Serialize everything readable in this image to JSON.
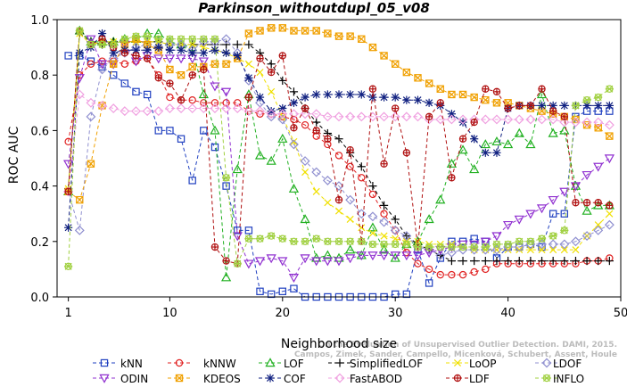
{
  "chart_data": {
    "type": "line",
    "title": "Parkinson_withoutdupl_05_v08",
    "xlabel": "Neighborhood size",
    "ylabel": "ROC AUC",
    "xlim": [
      0,
      50
    ],
    "ylim": [
      0,
      1
    ],
    "xticks": [
      1,
      10,
      20,
      30,
      40,
      50
    ],
    "yticks": [
      0.0,
      0.2,
      0.4,
      0.6,
      0.8,
      1.0
    ],
    "grid": false,
    "legend_position": "bottom",
    "watermark": "Campos, Zimek, Sander, Campello, Micenková, Schubert, Assent, Houle\nOn the Evaluation of Unsupervised Outlier Detection. DAMI, 2015.",
    "series": [
      {
        "name": "kNN",
        "color": "#2040c0",
        "marker": "square",
        "x": [
          1,
          2,
          3,
          4,
          5,
          6,
          7,
          8,
          9,
          10,
          11,
          12,
          13,
          14,
          15,
          16,
          17,
          18,
          19,
          20,
          21,
          22,
          23,
          24,
          25,
          26,
          27,
          28,
          29,
          30,
          31,
          32,
          33,
          34,
          35,
          36,
          37,
          38,
          39,
          40,
          41,
          42,
          43,
          44,
          45,
          46,
          47,
          48,
          49
        ],
        "y": [
          0.87,
          0.87,
          0.85,
          0.83,
          0.8,
          0.77,
          0.74,
          0.73,
          0.6,
          0.6,
          0.57,
          0.42,
          0.6,
          0.54,
          0.4,
          0.24,
          0.24,
          0.02,
          0.01,
          0.02,
          0.03,
          0.0,
          0.0,
          0.0,
          0.0,
          0.0,
          0.0,
          0.0,
          0.0,
          0.01,
          0.01,
          0.17,
          0.05,
          0.14,
          0.2,
          0.2,
          0.21,
          0.2,
          0.14,
          0.18,
          0.18,
          0.19,
          0.18,
          0.3,
          0.3,
          0.65,
          0.67,
          0.67,
          0.67
        ]
      },
      {
        "name": "kNNW",
        "color": "#e02020",
        "marker": "circle",
        "x": [
          1,
          2,
          3,
          4,
          5,
          6,
          7,
          8,
          9,
          10,
          11,
          12,
          13,
          14,
          15,
          16,
          17,
          18,
          19,
          20,
          21,
          22,
          23,
          24,
          25,
          26,
          27,
          28,
          29,
          30,
          31,
          32,
          33,
          34,
          35,
          36,
          37,
          38,
          39,
          40,
          41,
          42,
          43,
          44,
          45,
          46,
          47,
          48,
          49
        ],
        "y": [
          0.56,
          0.8,
          0.84,
          0.85,
          0.85,
          0.84,
          0.85,
          0.86,
          0.8,
          0.72,
          0.71,
          0.71,
          0.7,
          0.7,
          0.7,
          0.7,
          0.67,
          0.66,
          0.66,
          0.65,
          0.64,
          0.62,
          0.58,
          0.55,
          0.51,
          0.47,
          0.43,
          0.37,
          0.3,
          0.24,
          0.16,
          0.12,
          0.1,
          0.08,
          0.08,
          0.08,
          0.09,
          0.1,
          0.12,
          0.12,
          0.12,
          0.12,
          0.12,
          0.12,
          0.12,
          0.12,
          0.13,
          0.13,
          0.14
        ]
      },
      {
        "name": "LOF",
        "color": "#20b020",
        "marker": "triangle",
        "x": [
          1,
          2,
          3,
          4,
          5,
          6,
          7,
          8,
          9,
          10,
          11,
          12,
          13,
          14,
          15,
          16,
          17,
          18,
          19,
          20,
          21,
          22,
          23,
          24,
          25,
          26,
          27,
          28,
          29,
          30,
          31,
          32,
          33,
          34,
          35,
          36,
          37,
          38,
          39,
          40,
          41,
          42,
          43,
          44,
          45,
          46,
          47,
          48,
          49
        ],
        "y": [
          0.38,
          0.96,
          0.92,
          0.92,
          0.92,
          0.93,
          0.93,
          0.95,
          0.95,
          0.92,
          0.91,
          0.9,
          0.73,
          0.6,
          0.07,
          0.46,
          0.73,
          0.51,
          0.49,
          0.57,
          0.39,
          0.28,
          0.14,
          0.15,
          0.14,
          0.17,
          0.15,
          0.25,
          0.17,
          0.14,
          0.19,
          0.2,
          0.28,
          0.35,
          0.48,
          0.53,
          0.46,
          0.55,
          0.56,
          0.55,
          0.59,
          0.55,
          0.73,
          0.59,
          0.6,
          0.4,
          0.31,
          0.33,
          0.33
        ]
      },
      {
        "name": "SimplifiedLOF",
        "color": "#000000",
        "marker": "plus",
        "x": [
          1,
          2,
          3,
          4,
          5,
          6,
          7,
          8,
          9,
          10,
          11,
          12,
          13,
          14,
          15,
          16,
          17,
          18,
          19,
          20,
          21,
          22,
          23,
          24,
          25,
          26,
          27,
          28,
          29,
          30,
          31,
          32,
          33,
          34,
          35,
          36,
          37,
          38,
          39,
          40,
          41,
          42,
          43,
          44,
          45,
          46,
          47,
          48,
          49
        ],
        "y": [
          0.39,
          0.95,
          0.92,
          0.91,
          0.92,
          0.92,
          0.92,
          0.92,
          0.92,
          0.91,
          0.91,
          0.91,
          0.91,
          0.91,
          0.91,
          0.91,
          0.91,
          0.88,
          0.84,
          0.78,
          0.74,
          0.68,
          0.63,
          0.59,
          0.57,
          0.52,
          0.47,
          0.4,
          0.33,
          0.28,
          0.22,
          0.19,
          0.17,
          0.15,
          0.13,
          0.13,
          0.13,
          0.13,
          0.13,
          0.13,
          0.13,
          0.13,
          0.13,
          0.13,
          0.13,
          0.13,
          0.13,
          0.13,
          0.13
        ]
      },
      {
        "name": "LoOP",
        "color": "#f0e000",
        "marker": "x",
        "x": [
          1,
          2,
          3,
          4,
          5,
          6,
          7,
          8,
          9,
          10,
          11,
          12,
          13,
          14,
          15,
          16,
          17,
          18,
          19,
          20,
          21,
          22,
          23,
          24,
          25,
          26,
          27,
          28,
          29,
          30,
          31,
          32,
          33,
          34,
          35,
          36,
          37,
          38,
          39,
          40,
          41,
          42,
          43,
          44,
          45,
          46,
          47,
          48,
          49
        ],
        "y": [
          0.39,
          0.95,
          0.91,
          0.92,
          0.92,
          0.92,
          0.92,
          0.92,
          0.92,
          0.91,
          0.91,
          0.91,
          0.9,
          0.89,
          0.88,
          0.86,
          0.84,
          0.81,
          0.74,
          0.65,
          0.56,
          0.45,
          0.38,
          0.34,
          0.31,
          0.28,
          0.25,
          0.23,
          0.22,
          0.21,
          0.2,
          0.2,
          0.19,
          0.19,
          0.19,
          0.18,
          0.17,
          0.17,
          0.17,
          0.17,
          0.17,
          0.17,
          0.17,
          0.17,
          0.17,
          0.17,
          0.22,
          0.26,
          0.3
        ]
      },
      {
        "name": "LDOF",
        "color": "#9090d0",
        "marker": "diamond",
        "x": [
          1,
          2,
          3,
          4,
          5,
          6,
          7,
          8,
          9,
          10,
          11,
          12,
          13,
          14,
          15,
          16,
          17,
          18,
          19,
          20,
          21,
          22,
          23,
          24,
          25,
          26,
          27,
          28,
          29,
          30,
          31,
          32,
          33,
          34,
          35,
          36,
          37,
          38,
          39,
          40,
          41,
          42,
          43,
          44,
          45,
          46,
          47,
          48,
          49
        ],
        "y": [
          0.38,
          0.24,
          0.65,
          0.82,
          0.86,
          0.88,
          0.9,
          0.91,
          0.9,
          0.91,
          0.91,
          0.89,
          0.92,
          0.92,
          0.93,
          0.88,
          0.78,
          0.7,
          0.65,
          0.64,
          0.55,
          0.49,
          0.45,
          0.42,
          0.4,
          0.35,
          0.3,
          0.29,
          0.27,
          0.24,
          0.22,
          0.18,
          0.17,
          0.15,
          0.16,
          0.17,
          0.17,
          0.17,
          0.17,
          0.18,
          0.18,
          0.19,
          0.19,
          0.19,
          0.19,
          0.2,
          0.22,
          0.24,
          0.26
        ]
      },
      {
        "name": "ODIN",
        "color": "#9030d0",
        "marker": "triangle-down",
        "x": [
          1,
          2,
          3,
          4,
          5,
          6,
          7,
          8,
          9,
          10,
          11,
          12,
          13,
          14,
          15,
          16,
          17,
          18,
          19,
          20,
          21,
          22,
          23,
          24,
          25,
          26,
          27,
          28,
          29,
          30,
          31,
          32,
          33,
          34,
          35,
          36,
          37,
          38,
          39,
          40,
          41,
          42,
          43,
          44,
          45,
          46,
          47,
          48,
          49
        ],
        "y": [
          0.48,
          0.79,
          0.93,
          0.84,
          0.84,
          0.91,
          0.85,
          0.87,
          0.86,
          0.86,
          0.86,
          0.86,
          0.85,
          0.76,
          0.74,
          0.22,
          0.12,
          0.13,
          0.14,
          0.13,
          0.07,
          0.14,
          0.13,
          0.13,
          0.13,
          0.14,
          0.15,
          0.15,
          0.15,
          0.15,
          0.15,
          0.15,
          0.16,
          0.17,
          0.18,
          0.19,
          0.19,
          0.2,
          0.22,
          0.26,
          0.28,
          0.3,
          0.32,
          0.35,
          0.38,
          0.4,
          0.44,
          0.47,
          0.5
        ]
      },
      {
        "name": "KDEOS",
        "color": "#f0a000",
        "marker": "square-x",
        "x": [
          1,
          2,
          3,
          4,
          5,
          6,
          7,
          8,
          9,
          10,
          11,
          12,
          13,
          14,
          15,
          16,
          17,
          18,
          19,
          20,
          21,
          22,
          23,
          24,
          25,
          26,
          27,
          28,
          29,
          30,
          31,
          32,
          33,
          34,
          35,
          36,
          37,
          38,
          39,
          40,
          41,
          42,
          43,
          44,
          45,
          46,
          47,
          48,
          49
        ],
        "y": [
          0.38,
          0.35,
          0.48,
          0.69,
          0.84,
          0.91,
          0.93,
          0.91,
          0.89,
          0.82,
          0.8,
          0.83,
          0.83,
          0.84,
          0.84,
          0.86,
          0.95,
          0.96,
          0.97,
          0.97,
          0.96,
          0.96,
          0.96,
          0.95,
          0.94,
          0.94,
          0.93,
          0.9,
          0.87,
          0.84,
          0.81,
          0.79,
          0.77,
          0.75,
          0.73,
          0.73,
          0.72,
          0.71,
          0.7,
          0.7,
          0.69,
          0.68,
          0.67,
          0.66,
          0.65,
          0.64,
          0.62,
          0.61,
          0.58
        ]
      },
      {
        "name": "COF",
        "color": "#102080",
        "marker": "star",
        "x": [
          1,
          2,
          3,
          4,
          5,
          6,
          7,
          8,
          9,
          10,
          11,
          12,
          13,
          14,
          15,
          16,
          17,
          18,
          19,
          20,
          21,
          22,
          23,
          24,
          25,
          26,
          27,
          28,
          29,
          30,
          31,
          32,
          33,
          34,
          35,
          36,
          37,
          38,
          39,
          40,
          41,
          42,
          43,
          44,
          45,
          46,
          47,
          48,
          49
        ],
        "y": [
          0.25,
          0.88,
          0.9,
          0.95,
          0.88,
          0.89,
          0.89,
          0.89,
          0.9,
          0.89,
          0.89,
          0.88,
          0.88,
          0.89,
          0.88,
          0.87,
          0.79,
          0.72,
          0.67,
          0.68,
          0.7,
          0.72,
          0.73,
          0.73,
          0.73,
          0.73,
          0.73,
          0.72,
          0.72,
          0.72,
          0.71,
          0.71,
          0.7,
          0.69,
          0.66,
          0.63,
          0.57,
          0.52,
          0.52,
          0.68,
          0.69,
          0.69,
          0.69,
          0.69,
          0.69,
          0.69,
          0.69,
          0.69,
          0.69
        ]
      },
      {
        "name": "FastABOD",
        "color": "#f0a0e0",
        "marker": "diamond",
        "x": [
          1,
          2,
          3,
          4,
          5,
          6,
          7,
          8,
          9,
          10,
          11,
          12,
          13,
          14,
          15,
          16,
          17,
          18,
          19,
          20,
          21,
          22,
          23,
          24,
          25,
          26,
          27,
          28,
          29,
          30,
          31,
          32,
          33,
          34,
          35,
          36,
          37,
          38,
          39,
          40,
          41,
          42,
          43,
          44,
          45,
          46,
          47,
          48,
          49
        ],
        "y": [
          0.38,
          0.73,
          0.7,
          0.69,
          0.68,
          0.67,
          0.67,
          0.67,
          0.67,
          0.68,
          0.68,
          0.68,
          0.68,
          0.68,
          0.68,
          0.68,
          0.67,
          0.67,
          0.66,
          0.66,
          0.66,
          0.66,
          0.66,
          0.65,
          0.65,
          0.65,
          0.65,
          0.65,
          0.65,
          0.65,
          0.65,
          0.65,
          0.64,
          0.64,
          0.64,
          0.64,
          0.64,
          0.64,
          0.64,
          0.64,
          0.64,
          0.64,
          0.64,
          0.64,
          0.63,
          0.63,
          0.63,
          0.63,
          0.62
        ]
      },
      {
        "name": "LDF",
        "color": "#b01010",
        "marker": "circle-plus",
        "x": [
          1,
          2,
          3,
          4,
          5,
          6,
          7,
          8,
          9,
          10,
          11,
          12,
          13,
          14,
          15,
          16,
          17,
          18,
          19,
          20,
          21,
          22,
          23,
          24,
          25,
          26,
          27,
          28,
          29,
          30,
          31,
          32,
          33,
          34,
          35,
          36,
          37,
          38,
          39,
          40,
          41,
          42,
          43,
          44,
          45,
          46,
          47,
          48,
          49
        ],
        "y": [
          0.38,
          0.96,
          0.91,
          0.93,
          0.9,
          0.88,
          0.87,
          0.86,
          0.79,
          0.77,
          0.71,
          0.8,
          0.82,
          0.18,
          0.13,
          0.12,
          0.72,
          0.86,
          0.81,
          0.87,
          0.61,
          0.68,
          0.6,
          0.57,
          0.35,
          0.53,
          0.2,
          0.75,
          0.48,
          0.68,
          0.52,
          0.18,
          0.65,
          0.7,
          0.43,
          0.57,
          0.63,
          0.75,
          0.74,
          0.68,
          0.69,
          0.69,
          0.75,
          0.67,
          0.65,
          0.34,
          0.34,
          0.34,
          0.33
        ]
      },
      {
        "name": "INFLO",
        "color": "#a0d040",
        "marker": "star-circle",
        "x": [
          1,
          2,
          3,
          4,
          5,
          6,
          7,
          8,
          9,
          10,
          11,
          12,
          13,
          14,
          15,
          16,
          17,
          18,
          19,
          20,
          21,
          22,
          23,
          24,
          25,
          26,
          27,
          28,
          29,
          30,
          31,
          32,
          33,
          34,
          35,
          36,
          37,
          38,
          39,
          40,
          41,
          42,
          43,
          44,
          45,
          46,
          47,
          48,
          49
        ],
        "y": [
          0.11,
          0.96,
          0.91,
          0.91,
          0.91,
          0.93,
          0.94,
          0.94,
          0.93,
          0.93,
          0.93,
          0.93,
          0.93,
          0.93,
          0.43,
          0.12,
          0.21,
          0.21,
          0.22,
          0.21,
          0.2,
          0.2,
          0.21,
          0.2,
          0.2,
          0.2,
          0.2,
          0.19,
          0.19,
          0.19,
          0.19,
          0.18,
          0.18,
          0.18,
          0.18,
          0.18,
          0.18,
          0.18,
          0.19,
          0.19,
          0.2,
          0.2,
          0.21,
          0.22,
          0.24,
          0.69,
          0.71,
          0.72,
          0.75
        ]
      }
    ]
  }
}
